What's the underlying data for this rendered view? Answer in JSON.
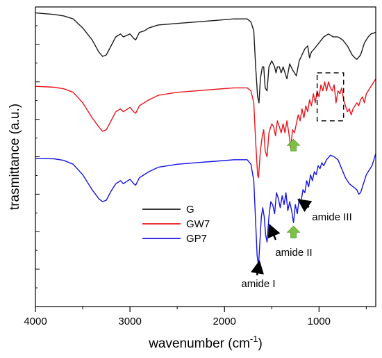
{
  "chart_data": {
    "type": "line",
    "title": "",
    "xlabel": "wavenumber (cm",
    "xlabel_sup": "-1",
    "xlabel_close": ")",
    "ylabel": "trasmittance (a.u.)",
    "xlim": [
      4000,
      400
    ],
    "x_reversed": true,
    "x_ticks": [
      4000,
      3000,
      2000,
      1000
    ],
    "x_tick_labels": [
      "4000",
      "3000",
      "2000",
      "1000"
    ],
    "ylim": [
      0,
      100
    ],
    "y_ticks_shown": false,
    "grid": false,
    "legend_position": "center-left",
    "series": [
      {
        "name": "G",
        "color": "#1a1a1a",
        "points": [
          [
            4000,
            98
          ],
          [
            3800,
            97.5
          ],
          [
            3700,
            97
          ],
          [
            3600,
            96
          ],
          [
            3500,
            93
          ],
          [
            3400,
            89
          ],
          [
            3330,
            85
          ],
          [
            3290,
            83.5
          ],
          [
            3250,
            84
          ],
          [
            3200,
            87
          ],
          [
            3150,
            90
          ],
          [
            3100,
            91
          ],
          [
            3070,
            90
          ],
          [
            3000,
            91
          ],
          [
            2960,
            89.5
          ],
          [
            2940,
            89
          ],
          [
            2900,
            91.5
          ],
          [
            2850,
            92
          ],
          [
            2800,
            93
          ],
          [
            2700,
            94
          ],
          [
            2500,
            94.5
          ],
          [
            2300,
            95
          ],
          [
            2100,
            95.5
          ],
          [
            1900,
            96
          ],
          [
            1760,
            96
          ],
          [
            1720,
            95
          ],
          [
            1690,
            92
          ],
          [
            1670,
            80
          ],
          [
            1650,
            70
          ],
          [
            1635,
            68
          ],
          [
            1620,
            76
          ],
          [
            1600,
            80
          ],
          [
            1585,
            80
          ],
          [
            1570,
            73
          ],
          [
            1550,
            72
          ],
          [
            1530,
            80
          ],
          [
            1500,
            82
          ],
          [
            1470,
            80
          ],
          [
            1455,
            78
          ],
          [
            1440,
            80
          ],
          [
            1420,
            80
          ],
          [
            1400,
            78
          ],
          [
            1380,
            80
          ],
          [
            1340,
            76
          ],
          [
            1310,
            81
          ],
          [
            1280,
            79
          ],
          [
            1240,
            77
          ],
          [
            1210,
            82
          ],
          [
            1180,
            84
          ],
          [
            1150,
            86
          ],
          [
            1120,
            87
          ],
          [
            1100,
            83
          ],
          [
            1080,
            85
          ],
          [
            1050,
            86
          ],
          [
            1000,
            88
          ],
          [
            950,
            90
          ],
          [
            900,
            91
          ],
          [
            850,
            90
          ],
          [
            800,
            90
          ],
          [
            750,
            89
          ],
          [
            700,
            87
          ],
          [
            650,
            84
          ],
          [
            620,
            83
          ],
          [
            600,
            82.5
          ],
          [
            560,
            84
          ],
          [
            520,
            88
          ],
          [
            480,
            90
          ],
          [
            450,
            91
          ],
          [
            400,
            91.5
          ]
        ]
      },
      {
        "name": "GW7",
        "color": "#e8141b",
        "points": [
          [
            4000,
            73.5
          ],
          [
            3800,
            73.2
          ],
          [
            3700,
            72.7
          ],
          [
            3600,
            71.5
          ],
          [
            3500,
            68
          ],
          [
            3400,
            63
          ],
          [
            3330,
            60
          ],
          [
            3290,
            58.5
          ],
          [
            3250,
            59
          ],
          [
            3200,
            62
          ],
          [
            3150,
            65
          ],
          [
            3100,
            66
          ],
          [
            3070,
            65
          ],
          [
            3000,
            66.5
          ],
          [
            2960,
            65
          ],
          [
            2940,
            64.5
          ],
          [
            2900,
            67
          ],
          [
            2850,
            68
          ],
          [
            2800,
            69
          ],
          [
            2700,
            70.5
          ],
          [
            2500,
            71.5
          ],
          [
            2300,
            72
          ],
          [
            2100,
            72.5
          ],
          [
            1900,
            73
          ],
          [
            1760,
            73
          ],
          [
            1720,
            72
          ],
          [
            1690,
            68
          ],
          [
            1670,
            55
          ],
          [
            1650,
            44
          ],
          [
            1640,
            43
          ],
          [
            1620,
            52
          ],
          [
            1600,
            57
          ],
          [
            1585,
            59
          ],
          [
            1570,
            52
          ],
          [
            1550,
            50
          ],
          [
            1530,
            58
          ],
          [
            1500,
            61
          ],
          [
            1480,
            60
          ],
          [
            1460,
            57
          ],
          [
            1440,
            62
          ],
          [
            1420,
            60
          ],
          [
            1400,
            58
          ],
          [
            1380,
            61
          ],
          [
            1360,
            58
          ],
          [
            1340,
            62
          ],
          [
            1320,
            58
          ],
          [
            1300,
            53
          ],
          [
            1280,
            59
          ],
          [
            1260,
            58
          ],
          [
            1240,
            61
          ],
          [
            1220,
            64
          ],
          [
            1200,
            62
          ],
          [
            1180,
            66
          ],
          [
            1160,
            63
          ],
          [
            1140,
            67
          ],
          [
            1120,
            65
          ],
          [
            1100,
            69
          ],
          [
            1080,
            67
          ],
          [
            1060,
            71
          ],
          [
            1040,
            68
          ],
          [
            1020,
            72
          ],
          [
            1000,
            70
          ],
          [
            980,
            74
          ],
          [
            960,
            72
          ],
          [
            940,
            75
          ],
          [
            920,
            72
          ],
          [
            900,
            75
          ],
          [
            880,
            73
          ],
          [
            860,
            72
          ],
          [
            840,
            74
          ],
          [
            820,
            68
          ],
          [
            800,
            72
          ],
          [
            780,
            71
          ],
          [
            760,
            73
          ],
          [
            740,
            69
          ],
          [
            720,
            67
          ],
          [
            700,
            65
          ],
          [
            680,
            66
          ],
          [
            660,
            64
          ],
          [
            640,
            66
          ],
          [
            620,
            67
          ],
          [
            600,
            68
          ],
          [
            580,
            67
          ],
          [
            560,
            69
          ],
          [
            540,
            70
          ],
          [
            520,
            68
          ],
          [
            500,
            71
          ],
          [
            480,
            72
          ],
          [
            460,
            73
          ],
          [
            440,
            74
          ],
          [
            420,
            75
          ],
          [
            400,
            76
          ]
        ]
      },
      {
        "name": "GP7",
        "color": "#1414e0",
        "points": [
          [
            4000,
            49.5
          ],
          [
            3800,
            49.3
          ],
          [
            3700,
            48.8
          ],
          [
            3600,
            47.5
          ],
          [
            3500,
            44
          ],
          [
            3400,
            39
          ],
          [
            3330,
            36
          ],
          [
            3290,
            35
          ],
          [
            3250,
            35.5
          ],
          [
            3200,
            38.5
          ],
          [
            3150,
            41
          ],
          [
            3100,
            42
          ],
          [
            3070,
            41
          ],
          [
            3000,
            42.5
          ],
          [
            2960,
            41
          ],
          [
            2940,
            40.5
          ],
          [
            2900,
            43
          ],
          [
            2850,
            44
          ],
          [
            2800,
            45
          ],
          [
            2700,
            46.5
          ],
          [
            2500,
            47.5
          ],
          [
            2300,
            48
          ],
          [
            2100,
            48.5
          ],
          [
            1900,
            49
          ],
          [
            1760,
            49
          ],
          [
            1720,
            47.5
          ],
          [
            1690,
            42
          ],
          [
            1670,
            28
          ],
          [
            1655,
            17
          ],
          [
            1640,
            13.5
          ],
          [
            1625,
            22
          ],
          [
            1610,
            30
          ],
          [
            1595,
            33
          ],
          [
            1580,
            30
          ],
          [
            1565,
            24
          ],
          [
            1550,
            21.5
          ],
          [
            1530,
            30
          ],
          [
            1510,
            35
          ],
          [
            1490,
            34
          ],
          [
            1470,
            31
          ],
          [
            1450,
            38
          ],
          [
            1430,
            36
          ],
          [
            1410,
            33
          ],
          [
            1390,
            37
          ],
          [
            1370,
            34
          ],
          [
            1350,
            38
          ],
          [
            1330,
            32
          ],
          [
            1310,
            35
          ],
          [
            1290,
            32
          ],
          [
            1270,
            28
          ],
          [
            1250,
            34
          ],
          [
            1230,
            31
          ],
          [
            1210,
            36
          ],
          [
            1190,
            35
          ],
          [
            1170,
            39
          ],
          [
            1150,
            38
          ],
          [
            1130,
            42
          ],
          [
            1110,
            40
          ],
          [
            1090,
            44
          ],
          [
            1070,
            42
          ],
          [
            1050,
            45
          ],
          [
            1030,
            44
          ],
          [
            1010,
            47
          ],
          [
            990,
            46
          ],
          [
            970,
            48
          ],
          [
            950,
            47
          ],
          [
            920,
            49
          ],
          [
            880,
            50.5
          ],
          [
            840,
            50
          ],
          [
            800,
            49
          ],
          [
            760,
            46
          ],
          [
            720,
            43
          ],
          [
            680,
            41
          ],
          [
            640,
            40
          ],
          [
            600,
            39
          ],
          [
            580,
            37.5
          ],
          [
            560,
            38
          ],
          [
            540,
            40
          ],
          [
            520,
            42
          ],
          [
            500,
            44
          ],
          [
            480,
            45
          ],
          [
            460,
            46
          ],
          [
            440,
            47
          ],
          [
            420,
            49
          ],
          [
            400,
            51
          ]
        ]
      }
    ],
    "annotations": [
      {
        "label": "amide I",
        "points_to": [
          1640,
          13.5
        ],
        "text_at": [
          1720,
          5
        ]
      },
      {
        "label": "amide II",
        "points_to": [
          1550,
          24
        ],
        "text_at": [
          1450,
          14
        ]
      },
      {
        "label": "amide III",
        "points_to": [
          1250,
          32
        ],
        "text_at": [
          1050,
          28
        ]
      }
    ],
    "highlight_box": {
      "x_range": [
        1020,
        740
      ],
      "y_range": [
        62,
        78
      ],
      "style": "dashed"
    },
    "arrow_markers": [
      {
        "color": "#7cc242",
        "x": 1270,
        "y": 54
      },
      {
        "color": "#7cc242",
        "x": 1270,
        "y": 25
      }
    ]
  }
}
